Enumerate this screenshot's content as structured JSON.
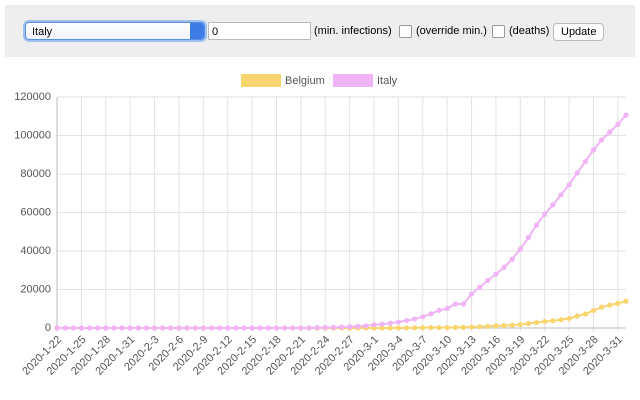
{
  "controls": {
    "country": "Italy",
    "min_value": "0",
    "min_label": "(min. infections)",
    "override_label": "(override min.)",
    "deaths_label": "(deaths)",
    "button": "Update"
  },
  "chart_data": {
    "type": "line",
    "categories": [
      "2020-1-22",
      null,
      null,
      "2020-1-25",
      null,
      null,
      "2020-1-28",
      null,
      null,
      "2020-1-31",
      null,
      null,
      "2020-2-3",
      null,
      null,
      "2020-2-6",
      null,
      null,
      "2020-2-9",
      null,
      null,
      "2020-2-12",
      null,
      null,
      "2020-2-15",
      null,
      null,
      "2020-2-18",
      null,
      null,
      "2020-2-21",
      null,
      null,
      "2020-2-24",
      null,
      null,
      "2020-2-27",
      null,
      null,
      "2020-3-1",
      null,
      null,
      "2020-3-4",
      null,
      null,
      "2020-3-7",
      null,
      null,
      "2020-3-10",
      null,
      null,
      "2020-3-13",
      null,
      null,
      "2020-3-16",
      null,
      null,
      "2020-3-19",
      null,
      null,
      "2020-3-22",
      null,
      null,
      "2020-3-25",
      null,
      null,
      "2020-3-28",
      null,
      null,
      "2020-3-31",
      null
    ],
    "series": [
      {
        "name": "Belgium",
        "color": "#f8d56f",
        "values": [
          0,
          0,
          0,
          0,
          0,
          0,
          0,
          0,
          0,
          0,
          0,
          0,
          0,
          1,
          1,
          1,
          1,
          1,
          1,
          1,
          1,
          1,
          1,
          1,
          1,
          1,
          1,
          1,
          1,
          1,
          1,
          1,
          1,
          1,
          1,
          1,
          1,
          1,
          1,
          2,
          8,
          13,
          23,
          50,
          109,
          169,
          200,
          239,
          267,
          314,
          314,
          559,
          689,
          886,
          1058,
          1243,
          1486,
          1795,
          2257,
          2815,
          3401,
          3743,
          4269,
          4937,
          6235,
          7284,
          9134,
          10836,
          11899,
          12775,
          13964
        ]
      },
      {
        "name": "Italy",
        "color": "#efb3f6",
        "values": [
          0,
          0,
          0,
          0,
          0,
          0,
          0,
          0,
          0,
          2,
          2,
          2,
          2,
          2,
          2,
          2,
          3,
          3,
          3,
          3,
          3,
          3,
          3,
          3,
          3,
          3,
          3,
          3,
          3,
          3,
          20,
          62,
          155,
          229,
          322,
          453,
          655,
          888,
          1128,
          1694,
          2036,
          2502,
          3089,
          3858,
          4636,
          5883,
          7375,
          9172,
          10149,
          12462,
          12462,
          17660,
          21157,
          24747,
          27980,
          31506,
          35713,
          41035,
          47021,
          53578,
          59138,
          63927,
          69176,
          74386,
          80589,
          86498,
          92472,
          97689,
          101739,
          105792,
          110574
        ]
      }
    ],
    "ylim": [
      0,
      120000
    ],
    "yticks": [
      0,
      20000,
      40000,
      60000,
      80000,
      100000,
      120000
    ],
    "grid": true,
    "legend": "top"
  }
}
